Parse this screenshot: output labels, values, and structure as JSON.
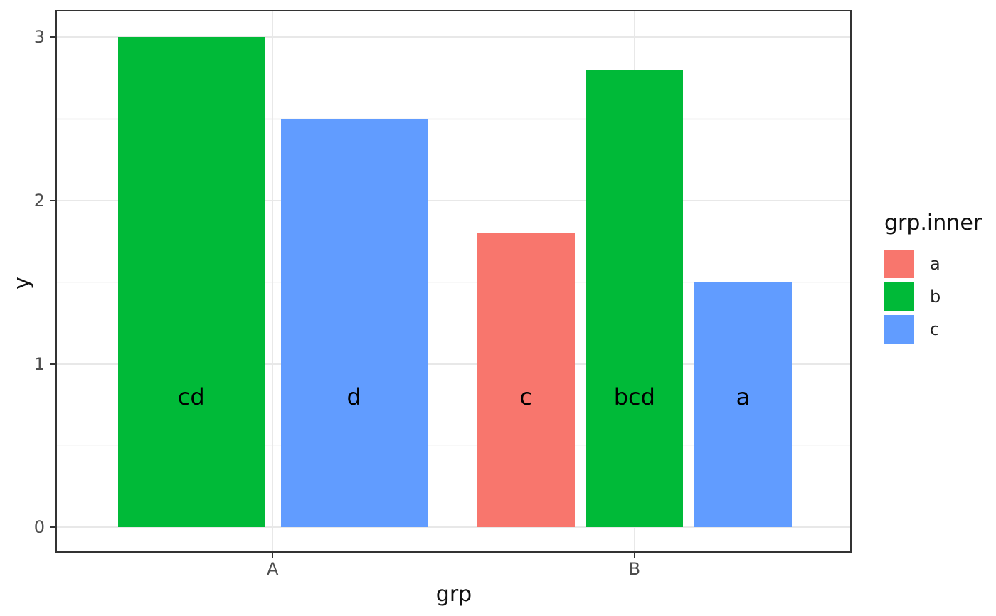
{
  "chart_data": {
    "type": "bar",
    "title": "",
    "xlabel": "grp",
    "ylabel": "y",
    "x_categories": [
      "A",
      "B"
    ],
    "y_ticks": [
      "0",
      "1",
      "2",
      "3"
    ],
    "ylim": [
      0,
      3
    ],
    "grid": "major+minor, light gray on white panel",
    "legend_position": "right",
    "legend": {
      "title": "grp.inner",
      "entries": [
        {
          "label": "a",
          "color": "#F8766D"
        },
        {
          "label": "b",
          "color": "#00BA38"
        },
        {
          "label": "c",
          "color": "#619CFF"
        }
      ]
    },
    "bar_text_y": 0.8,
    "groups": [
      {
        "category": "A",
        "bars": [
          {
            "series": "b",
            "value": 3.0,
            "text": "cd",
            "color": "#00BA38"
          },
          {
            "series": "c",
            "value": 2.5,
            "text": "d",
            "color": "#619CFF"
          }
        ]
      },
      {
        "category": "B",
        "bars": [
          {
            "series": "a",
            "value": 1.8,
            "text": "c",
            "color": "#F8766D"
          },
          {
            "series": "b",
            "value": 2.8,
            "text": "bcd",
            "color": "#00BA38"
          },
          {
            "series": "c",
            "value": 1.5,
            "text": "a",
            "color": "#619CFF"
          }
        ]
      }
    ]
  }
}
